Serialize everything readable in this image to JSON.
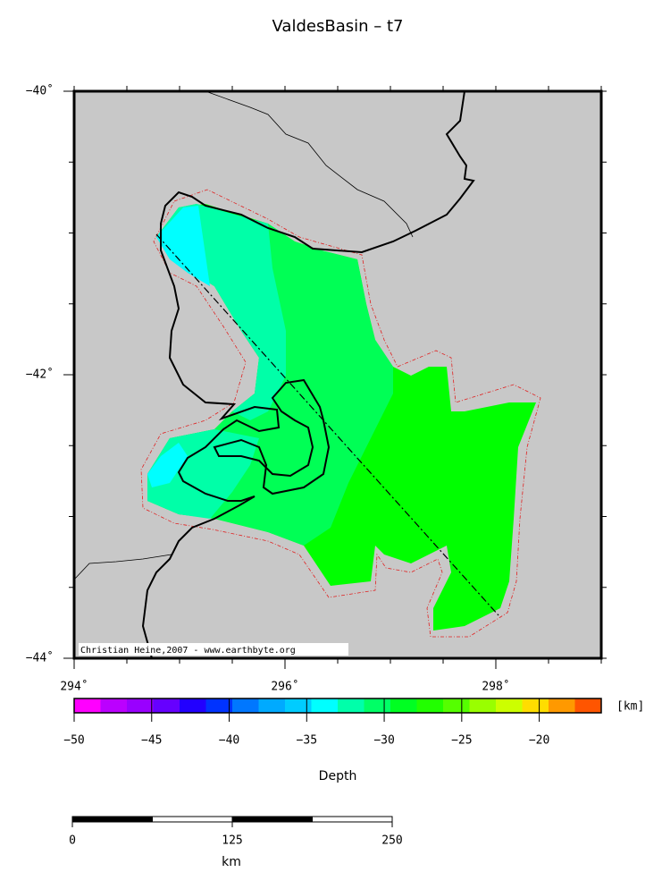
{
  "title": "ValdesBasin – t7",
  "map": {
    "lon_range": [
      294,
      299
    ],
    "lat_range": [
      -44,
      -40
    ],
    "lon_ticks": [
      {
        "value": 294,
        "label": "294˚"
      },
      {
        "value": 296,
        "label": "296˚"
      },
      {
        "value": 298,
        "label": "298˚"
      }
    ],
    "lat_ticks": [
      {
        "value": -40,
        "label": "−40˚"
      },
      {
        "value": -42,
        "label": "−42˚"
      },
      {
        "value": -44,
        "label": "−44˚"
      }
    ],
    "credit": "Christian Heine,2007 - www.earthbyte.org"
  },
  "colorbar": {
    "range": [
      -50,
      -16
    ],
    "colors": [
      "#ff00ff",
      "#bb00ff",
      "#9900ff",
      "#6600ff",
      "#2200ff",
      "#0033ff",
      "#0077ff",
      "#00aaff",
      "#00ccff",
      "#00ffff",
      "#00ffaa",
      "#00ff66",
      "#00ff22",
      "#22ff00",
      "#55ff00",
      "#99ff00",
      "#ccff00",
      "#ffdd00",
      "#ff9900",
      "#ff5500"
    ],
    "ticks": [
      {
        "value": -50,
        "label": "−50"
      },
      {
        "value": -45,
        "label": "−45"
      },
      {
        "value": -40,
        "label": "−40"
      },
      {
        "value": -35,
        "label": "−35"
      },
      {
        "value": -30,
        "label": "−30"
      },
      {
        "value": -25,
        "label": "−25"
      },
      {
        "value": -20,
        "label": "−20"
      }
    ],
    "unit": "[km]",
    "label": "Depth"
  },
  "scalebar": {
    "range": [
      0,
      250
    ],
    "ticks": [
      0,
      125,
      250
    ],
    "unit": "km"
  }
}
